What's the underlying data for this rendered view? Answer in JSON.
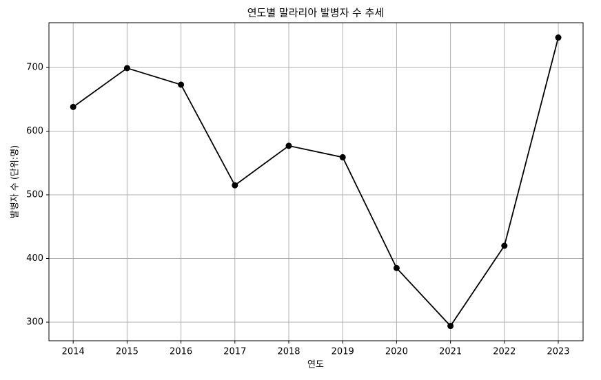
{
  "chart_data": {
    "type": "line",
    "title": "연도별 말라리아 발병자 수 추세",
    "xlabel": "연도",
    "ylabel": "발병자 수 (단위:명)",
    "x": [
      2014,
      2015,
      2016,
      2017,
      2018,
      2019,
      2020,
      2021,
      2022,
      2023
    ],
    "series": [
      {
        "color": "#000000",
        "values": [
          638,
          699,
          673,
          515,
          577,
          559,
          385,
          294,
          420,
          747
        ]
      }
    ],
    "xlim": [
      2013.55,
      2023.46
    ],
    "xticks": [
      2014,
      2015,
      2016,
      2017,
      2018,
      2019,
      2020,
      2021,
      2022,
      2023
    ],
    "ylim": [
      270.8,
      770.3
    ],
    "yticks": [
      300,
      400,
      500,
      600,
      700
    ],
    "grid": true,
    "marker": "circle"
  }
}
